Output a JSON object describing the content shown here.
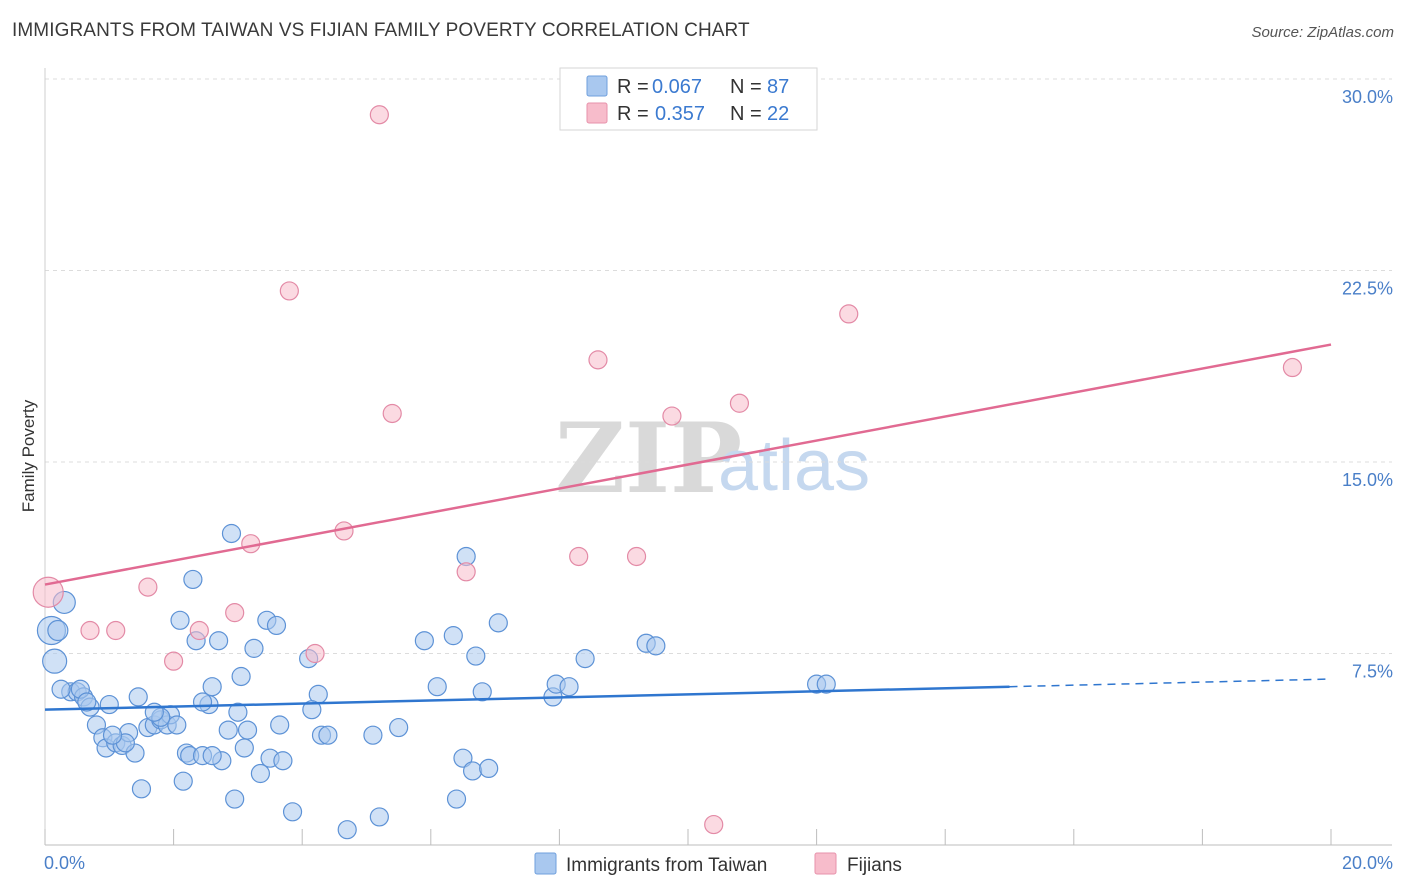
{
  "title": "IMMIGRANTS FROM TAIWAN VS FIJIAN FAMILY POVERTY CORRELATION CHART",
  "source": "Source: ZipAtlas.com",
  "watermark": {
    "zip": "ZIP",
    "atlas": "atlas"
  },
  "legend": {
    "r_label": "R =",
    "n_label": "N =",
    "series": [
      {
        "r": "0.067",
        "n": "87",
        "color": "#a9c8ef",
        "stroke": "#6f9fdc"
      },
      {
        "r": "0.357",
        "n": "22",
        "color": "#f7bccb",
        "stroke": "#e792ab"
      }
    ]
  },
  "chart_data": {
    "type": "scatter",
    "title": "IMMIGRANTS FROM TAIWAN VS FIJIAN FAMILY POVERTY CORRELATION CHART",
    "xlabel": "",
    "ylabel": "Family Poverty",
    "xlim": [
      0,
      20
    ],
    "ylim": [
      0,
      30
    ],
    "x_ticks": [
      "0.0%",
      "20.0%"
    ],
    "y_ticks": [
      {
        "value": 30,
        "label": "30.0%"
      },
      {
        "value": 22.5,
        "label": "22.5%"
      },
      {
        "value": 15,
        "label": "15.0%"
      },
      {
        "value": 7.5,
        "label": "7.5%"
      }
    ],
    "series": [
      {
        "name": "Immigrants from Taiwan",
        "color": "#a9c8ef",
        "stroke": "#5d92d6",
        "trend": {
          "x0": 0,
          "y0": 5.3,
          "x1": 15,
          "y1": 6.2,
          "dash_to": 20,
          "dash_y": 6.5,
          "color": "#2f76cf"
        },
        "points": [
          [
            0.1,
            8.4,
            14
          ],
          [
            0.15,
            7.2,
            12
          ],
          [
            0.3,
            9.5,
            11
          ],
          [
            0.2,
            8.4,
            10
          ],
          [
            0.4,
            6.0,
            9
          ],
          [
            0.5,
            6.0,
            9
          ],
          [
            0.6,
            5.8,
            9
          ],
          [
            0.7,
            5.4,
            9
          ],
          [
            0.8,
            4.7,
            9
          ],
          [
            0.9,
            4.2,
            9
          ],
          [
            0.95,
            3.8,
            9
          ],
          [
            1.0,
            5.5,
            9
          ],
          [
            1.1,
            4.0,
            9
          ],
          [
            1.2,
            3.9,
            9
          ],
          [
            1.3,
            4.4,
            9
          ],
          [
            1.4,
            3.6,
            9
          ],
          [
            1.45,
            5.8,
            9
          ],
          [
            1.5,
            2.2,
            9
          ],
          [
            1.6,
            4.6,
            9
          ],
          [
            1.7,
            4.7,
            9
          ],
          [
            1.8,
            4.9,
            9
          ],
          [
            1.9,
            4.7,
            9
          ],
          [
            1.95,
            5.1,
            9
          ],
          [
            2.05,
            4.7,
            9
          ],
          [
            2.1,
            8.8,
            9
          ],
          [
            2.15,
            2.5,
            9
          ],
          [
            2.2,
            3.6,
            9
          ],
          [
            2.25,
            3.5,
            9
          ],
          [
            2.3,
            10.4,
            9
          ],
          [
            2.35,
            8.0,
            9
          ],
          [
            2.45,
            3.5,
            9
          ],
          [
            2.55,
            5.5,
            9
          ],
          [
            2.6,
            6.2,
            9
          ],
          [
            2.7,
            8.0,
            9
          ],
          [
            2.75,
            3.3,
            9
          ],
          [
            2.85,
            4.5,
            9
          ],
          [
            2.9,
            12.2,
            9
          ],
          [
            2.95,
            1.8,
            9
          ],
          [
            3.0,
            5.2,
            9
          ],
          [
            3.05,
            6.6,
            9
          ],
          [
            3.1,
            3.8,
            9
          ],
          [
            3.15,
            4.5,
            9
          ],
          [
            3.25,
            7.7,
            9
          ],
          [
            3.35,
            2.8,
            9
          ],
          [
            3.45,
            8.8,
            9
          ],
          [
            3.5,
            3.4,
            9
          ],
          [
            3.6,
            8.6,
            9
          ],
          [
            3.65,
            4.7,
            9
          ],
          [
            3.85,
            1.3,
            9
          ],
          [
            4.1,
            7.3,
            9
          ],
          [
            4.25,
            5.9,
            9
          ],
          [
            4.3,
            4.3,
            9
          ],
          [
            4.4,
            4.3,
            9
          ],
          [
            4.7,
            0.6,
            9
          ],
          [
            5.1,
            4.3,
            9
          ],
          [
            5.2,
            1.1,
            9
          ],
          [
            5.5,
            4.6,
            9
          ],
          [
            5.9,
            8.0,
            9
          ],
          [
            6.1,
            6.2,
            9
          ],
          [
            6.35,
            8.2,
            9
          ],
          [
            6.4,
            1.8,
            9
          ],
          [
            6.5,
            3.4,
            9
          ],
          [
            6.55,
            11.3,
            9
          ],
          [
            6.65,
            2.9,
            9
          ],
          [
            6.7,
            7.4,
            9
          ],
          [
            6.8,
            6.0,
            9
          ],
          [
            6.9,
            3.0,
            9
          ],
          [
            7.05,
            8.7,
            9
          ],
          [
            7.9,
            5.8,
            9
          ],
          [
            7.95,
            6.3,
            9
          ],
          [
            8.15,
            6.2,
            9
          ],
          [
            8.4,
            7.3,
            9
          ],
          [
            9.35,
            7.9,
            9
          ],
          [
            9.5,
            7.8,
            9
          ],
          [
            12.0,
            6.3,
            9
          ],
          [
            12.15,
            6.3,
            9
          ],
          [
            0.25,
            6.1,
            9
          ],
          [
            0.55,
            6.1,
            9
          ],
          [
            1.25,
            4.0,
            9
          ],
          [
            1.8,
            5.0,
            9
          ],
          [
            2.6,
            3.5,
            9
          ],
          [
            3.7,
            3.3,
            9
          ],
          [
            4.15,
            5.3,
            9
          ],
          [
            1.05,
            4.3,
            9
          ],
          [
            0.65,
            5.6,
            9
          ],
          [
            1.7,
            5.2,
            9
          ],
          [
            2.45,
            5.6,
            9
          ]
        ]
      },
      {
        "name": "Fijians",
        "color": "#f7bccb",
        "stroke": "#e38aa6",
        "trend": {
          "x0": 0,
          "y0": 10.2,
          "x1": 20,
          "y1": 19.6,
          "color": "#e16a92"
        },
        "points": [
          [
            0.05,
            9.9,
            15
          ],
          [
            0.7,
            8.4,
            9
          ],
          [
            1.1,
            8.4,
            9
          ],
          [
            1.6,
            10.1,
            9
          ],
          [
            2.0,
            7.2,
            9
          ],
          [
            2.4,
            8.4,
            9
          ],
          [
            2.95,
            9.1,
            9
          ],
          [
            3.2,
            11.8,
            9
          ],
          [
            3.8,
            21.7,
            9
          ],
          [
            4.2,
            7.5,
            9
          ],
          [
            4.65,
            12.3,
            9
          ],
          [
            5.2,
            28.6,
            9
          ],
          [
            5.4,
            16.9,
            9
          ],
          [
            6.55,
            10.7,
            9
          ],
          [
            8.3,
            11.3,
            9
          ],
          [
            8.6,
            19.0,
            9
          ],
          [
            9.2,
            11.3,
            9
          ],
          [
            9.75,
            16.8,
            9
          ],
          [
            10.4,
            0.8,
            9
          ],
          [
            10.8,
            17.3,
            9
          ],
          [
            12.5,
            20.8,
            9
          ],
          [
            19.4,
            18.7,
            9
          ]
        ]
      }
    ]
  }
}
